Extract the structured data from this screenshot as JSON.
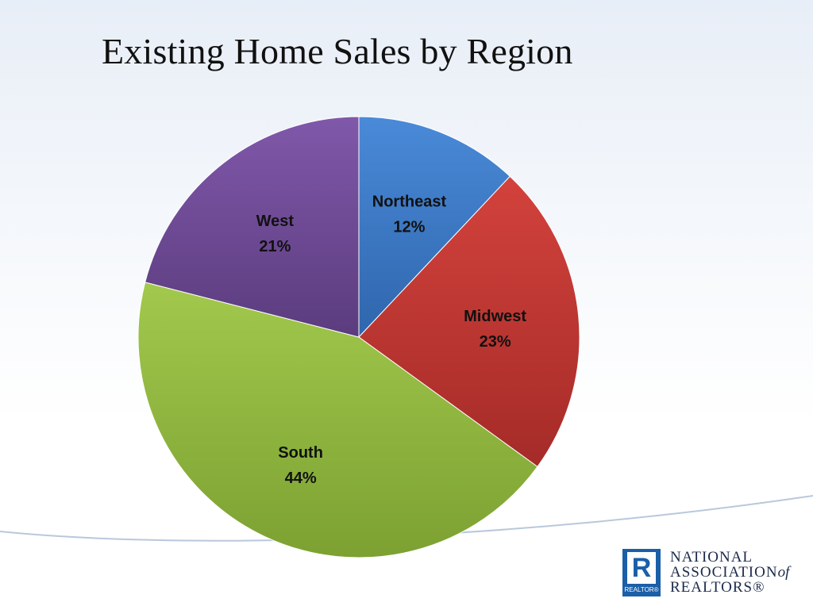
{
  "title": "Existing Home Sales by Region",
  "chart_data": {
    "type": "pie",
    "title": "Existing Home Sales by Region",
    "slices": [
      {
        "label": "Northeast",
        "value": 12,
        "value_label": "12%",
        "color": "#3a78c8"
      },
      {
        "label": "Midwest",
        "value": 23,
        "value_label": "23%",
        "color": "#c23a36"
      },
      {
        "label": "South",
        "value": 44,
        "value_label": "44%",
        "color": "#8db83e"
      },
      {
        "label": "West",
        "value": 21,
        "value_label": "21%",
        "color": "#6e4a94"
      }
    ],
    "start_angle_deg": 0,
    "direction": "clockwise",
    "legend": "none"
  },
  "logo": {
    "mark_letter": "R",
    "mark_caption": "REALTOR®",
    "line1": "NATIONAL",
    "line2_main": "ASSOCIATION",
    "line2_italic": "of",
    "line3": "REALTORS®"
  },
  "colors": {
    "logo_blue": "#1a5fa8",
    "swoosh": "#b9c8dc"
  }
}
